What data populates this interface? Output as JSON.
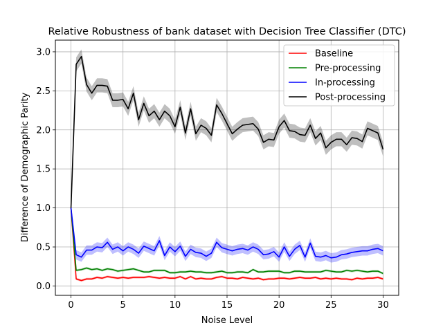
{
  "chart_data": {
    "type": "line",
    "title": "Relative Robustness of bank dataset with Decision Tree Classifier (DTC)",
    "xlabel": "Noise Level",
    "ylabel": "Difference of Demographic Parity",
    "xlim": [
      -1.5,
      31.5
    ],
    "ylim": [
      -0.12,
      3.15
    ],
    "xticks": [
      0,
      5,
      10,
      15,
      20,
      25,
      30
    ],
    "yticks": [
      0.0,
      0.5,
      1.0,
      1.5,
      2.0,
      2.5,
      3.0
    ],
    "xtick_labels": [
      "0",
      "5",
      "10",
      "15",
      "20",
      "25",
      "30"
    ],
    "ytick_labels": [
      "0.0",
      "0.5",
      "1.0",
      "1.5",
      "2.0",
      "2.5",
      "3.0"
    ],
    "grid": true,
    "legend_position": "top-right",
    "x": [
      0,
      0.5,
      1,
      1.5,
      2,
      2.5,
      3,
      3.5,
      4,
      4.5,
      5,
      5.5,
      6,
      6.5,
      7,
      7.5,
      8,
      8.5,
      9,
      9.5,
      10,
      10.5,
      11,
      11.5,
      12,
      12.5,
      13,
      13.5,
      14,
      14.5,
      15,
      15.5,
      16,
      16.5,
      17,
      17.5,
      18,
      18.5,
      19,
      19.5,
      20,
      20.5,
      21,
      21.5,
      22,
      22.5,
      23,
      23.5,
      24,
      24.5,
      25,
      25.5,
      26,
      26.5,
      27,
      27.5,
      28,
      28.5,
      29,
      29.5,
      30
    ],
    "series": [
      {
        "name": "Baseline",
        "color": "#ff0000",
        "band": 0.015,
        "values": [
          1.0,
          0.09,
          0.07,
          0.09,
          0.09,
          0.11,
          0.1,
          0.12,
          0.11,
          0.1,
          0.11,
          0.1,
          0.11,
          0.11,
          0.11,
          0.12,
          0.11,
          0.1,
          0.11,
          0.1,
          0.1,
          0.12,
          0.09,
          0.12,
          0.09,
          0.1,
          0.09,
          0.09,
          0.11,
          0.12,
          0.1,
          0.1,
          0.09,
          0.11,
          0.1,
          0.09,
          0.1,
          0.08,
          0.09,
          0.09,
          0.1,
          0.1,
          0.09,
          0.1,
          0.11,
          0.1,
          0.1,
          0.11,
          0.09,
          0.1,
          0.09,
          0.1,
          0.09,
          0.09,
          0.08,
          0.1,
          0.09,
          0.1,
          0.1,
          0.11,
          0.09
        ]
      },
      {
        "name": "Pre-processing",
        "color": "#008000",
        "band": 0.015,
        "values": [
          1.0,
          0.2,
          0.21,
          0.23,
          0.21,
          0.22,
          0.2,
          0.22,
          0.21,
          0.19,
          0.2,
          0.21,
          0.22,
          0.2,
          0.18,
          0.18,
          0.2,
          0.2,
          0.2,
          0.17,
          0.17,
          0.18,
          0.18,
          0.19,
          0.18,
          0.18,
          0.17,
          0.17,
          0.18,
          0.19,
          0.17,
          0.17,
          0.18,
          0.18,
          0.17,
          0.21,
          0.18,
          0.18,
          0.19,
          0.19,
          0.19,
          0.17,
          0.17,
          0.19,
          0.19,
          0.18,
          0.18,
          0.18,
          0.18,
          0.2,
          0.19,
          0.18,
          0.18,
          0.2,
          0.19,
          0.2,
          0.19,
          0.18,
          0.19,
          0.19,
          0.16
        ]
      },
      {
        "name": "In-processing",
        "color": "#0000ff",
        "band": 0.06,
        "values": [
          1.0,
          0.4,
          0.37,
          0.46,
          0.46,
          0.5,
          0.49,
          0.56,
          0.47,
          0.5,
          0.45,
          0.5,
          0.47,
          0.42,
          0.51,
          0.48,
          0.45,
          0.58,
          0.39,
          0.5,
          0.44,
          0.51,
          0.38,
          0.47,
          0.43,
          0.42,
          0.38,
          0.42,
          0.56,
          0.49,
          0.47,
          0.45,
          0.47,
          0.48,
          0.46,
          0.5,
          0.47,
          0.4,
          0.41,
          0.44,
          0.37,
          0.5,
          0.38,
          0.47,
          0.52,
          0.37,
          0.55,
          0.38,
          0.37,
          0.39,
          0.36,
          0.37,
          0.4,
          0.41,
          0.43,
          0.44,
          0.45,
          0.45,
          0.47,
          0.48,
          0.45
        ]
      },
      {
        "name": "Post-processing",
        "color": "#000000",
        "band": 0.09,
        "values": [
          1.0,
          2.84,
          2.94,
          2.58,
          2.47,
          2.57,
          2.57,
          2.56,
          2.38,
          2.38,
          2.39,
          2.27,
          2.47,
          2.13,
          2.34,
          2.18,
          2.24,
          2.13,
          2.24,
          2.18,
          2.04,
          2.29,
          1.96,
          2.27,
          1.95,
          2.06,
          2.02,
          1.93,
          2.32,
          2.21,
          2.08,
          1.95,
          2.01,
          2.06,
          2.07,
          2.08,
          2.01,
          1.84,
          1.88,
          1.87,
          2.04,
          2.12,
          1.99,
          1.98,
          1.94,
          1.93,
          2.06,
          1.89,
          1.96,
          1.77,
          1.84,
          1.88,
          1.88,
          1.81,
          1.9,
          1.89,
          1.85,
          2.02,
          1.99,
          1.96,
          1.75
        ]
      }
    ]
  }
}
